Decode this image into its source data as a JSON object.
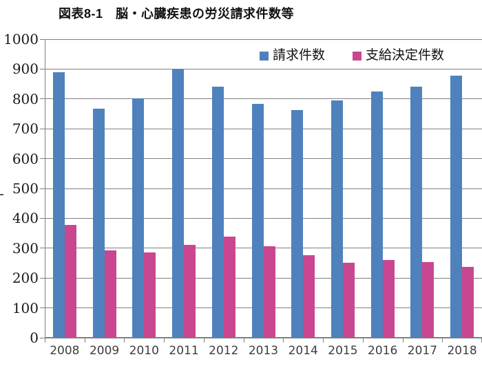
{
  "title": "図表8-1　脳・心臓疾患の労災請求件数等",
  "chart_data": {
    "type": "bar",
    "title": "図表8-1　脳・心臓疾患の労災請求件数等",
    "categories": [
      "2008",
      "2009",
      "2010",
      "2011",
      "2012",
      "2013",
      "2014",
      "2015",
      "2016",
      "2017",
      "2018"
    ],
    "series": [
      {
        "name": "請求件数",
        "color": "#4f81bd",
        "values": [
          889,
          767,
          802,
          898,
          842,
          784,
          763,
          795,
          825,
          840,
          877
        ]
      },
      {
        "name": "支給決定件数",
        "color": "#c94790",
        "values": [
          377,
          293,
          285,
          310,
          338,
          306,
          277,
          251,
          260,
          253,
          238
        ]
      }
    ],
    "xlabel": "",
    "ylabel": "",
    "ylim": [
      0,
      1000
    ],
    "y_ticks": [
      0,
      100,
      200,
      300,
      400,
      500,
      600,
      700,
      800,
      900,
      1000
    ],
    "grid": true,
    "legend_position": "top-center-inside",
    "gridline_color": "#7f7f7f",
    "axis_color": "#7f7f7f",
    "background_color": "#ffffff"
  }
}
